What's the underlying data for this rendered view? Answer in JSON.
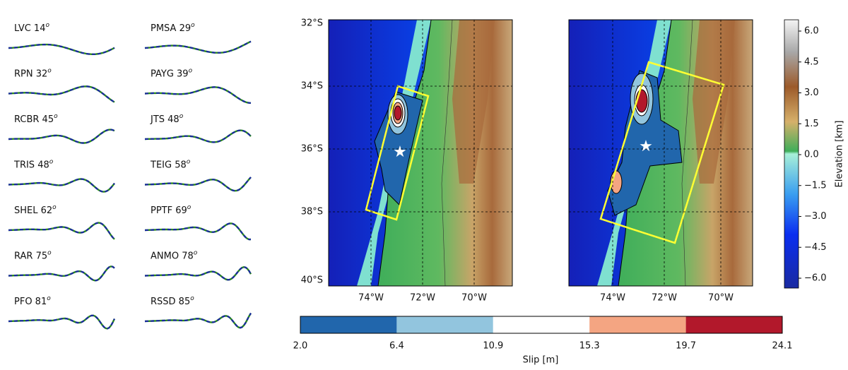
{
  "waveforms": {
    "degree_mark": "o",
    "stations": [
      "LVC 14",
      "PMSA 29",
      "RPN 32",
      "PAYG 39",
      "RCBR 45",
      "JTS 48",
      "TRIS 48",
      "TEIG 58",
      "SHEL 62",
      "PPTF 69",
      "RAR 75",
      "ANMO 78",
      "PFO 81",
      "RSSD 85"
    ]
  },
  "maps": {
    "lat_labels": [
      "32°S",
      "34°S",
      "36°S",
      "38°S",
      "40°S"
    ],
    "lon_labels": [
      "74°W",
      "72°W",
      "70°W"
    ]
  },
  "elevation_colorbar": {
    "label": "Elevation [km]",
    "ticks": [
      "6.0",
      "4.5",
      "3.0",
      "1.5",
      "0.0",
      "−1.5",
      "−3.0",
      "−4.5",
      "−6.0"
    ]
  },
  "slip_colorbar": {
    "label": "Slip [m]",
    "ticks": [
      "2.0",
      "6.4",
      "10.9",
      "15.3",
      "19.7",
      "24.1"
    ]
  }
}
